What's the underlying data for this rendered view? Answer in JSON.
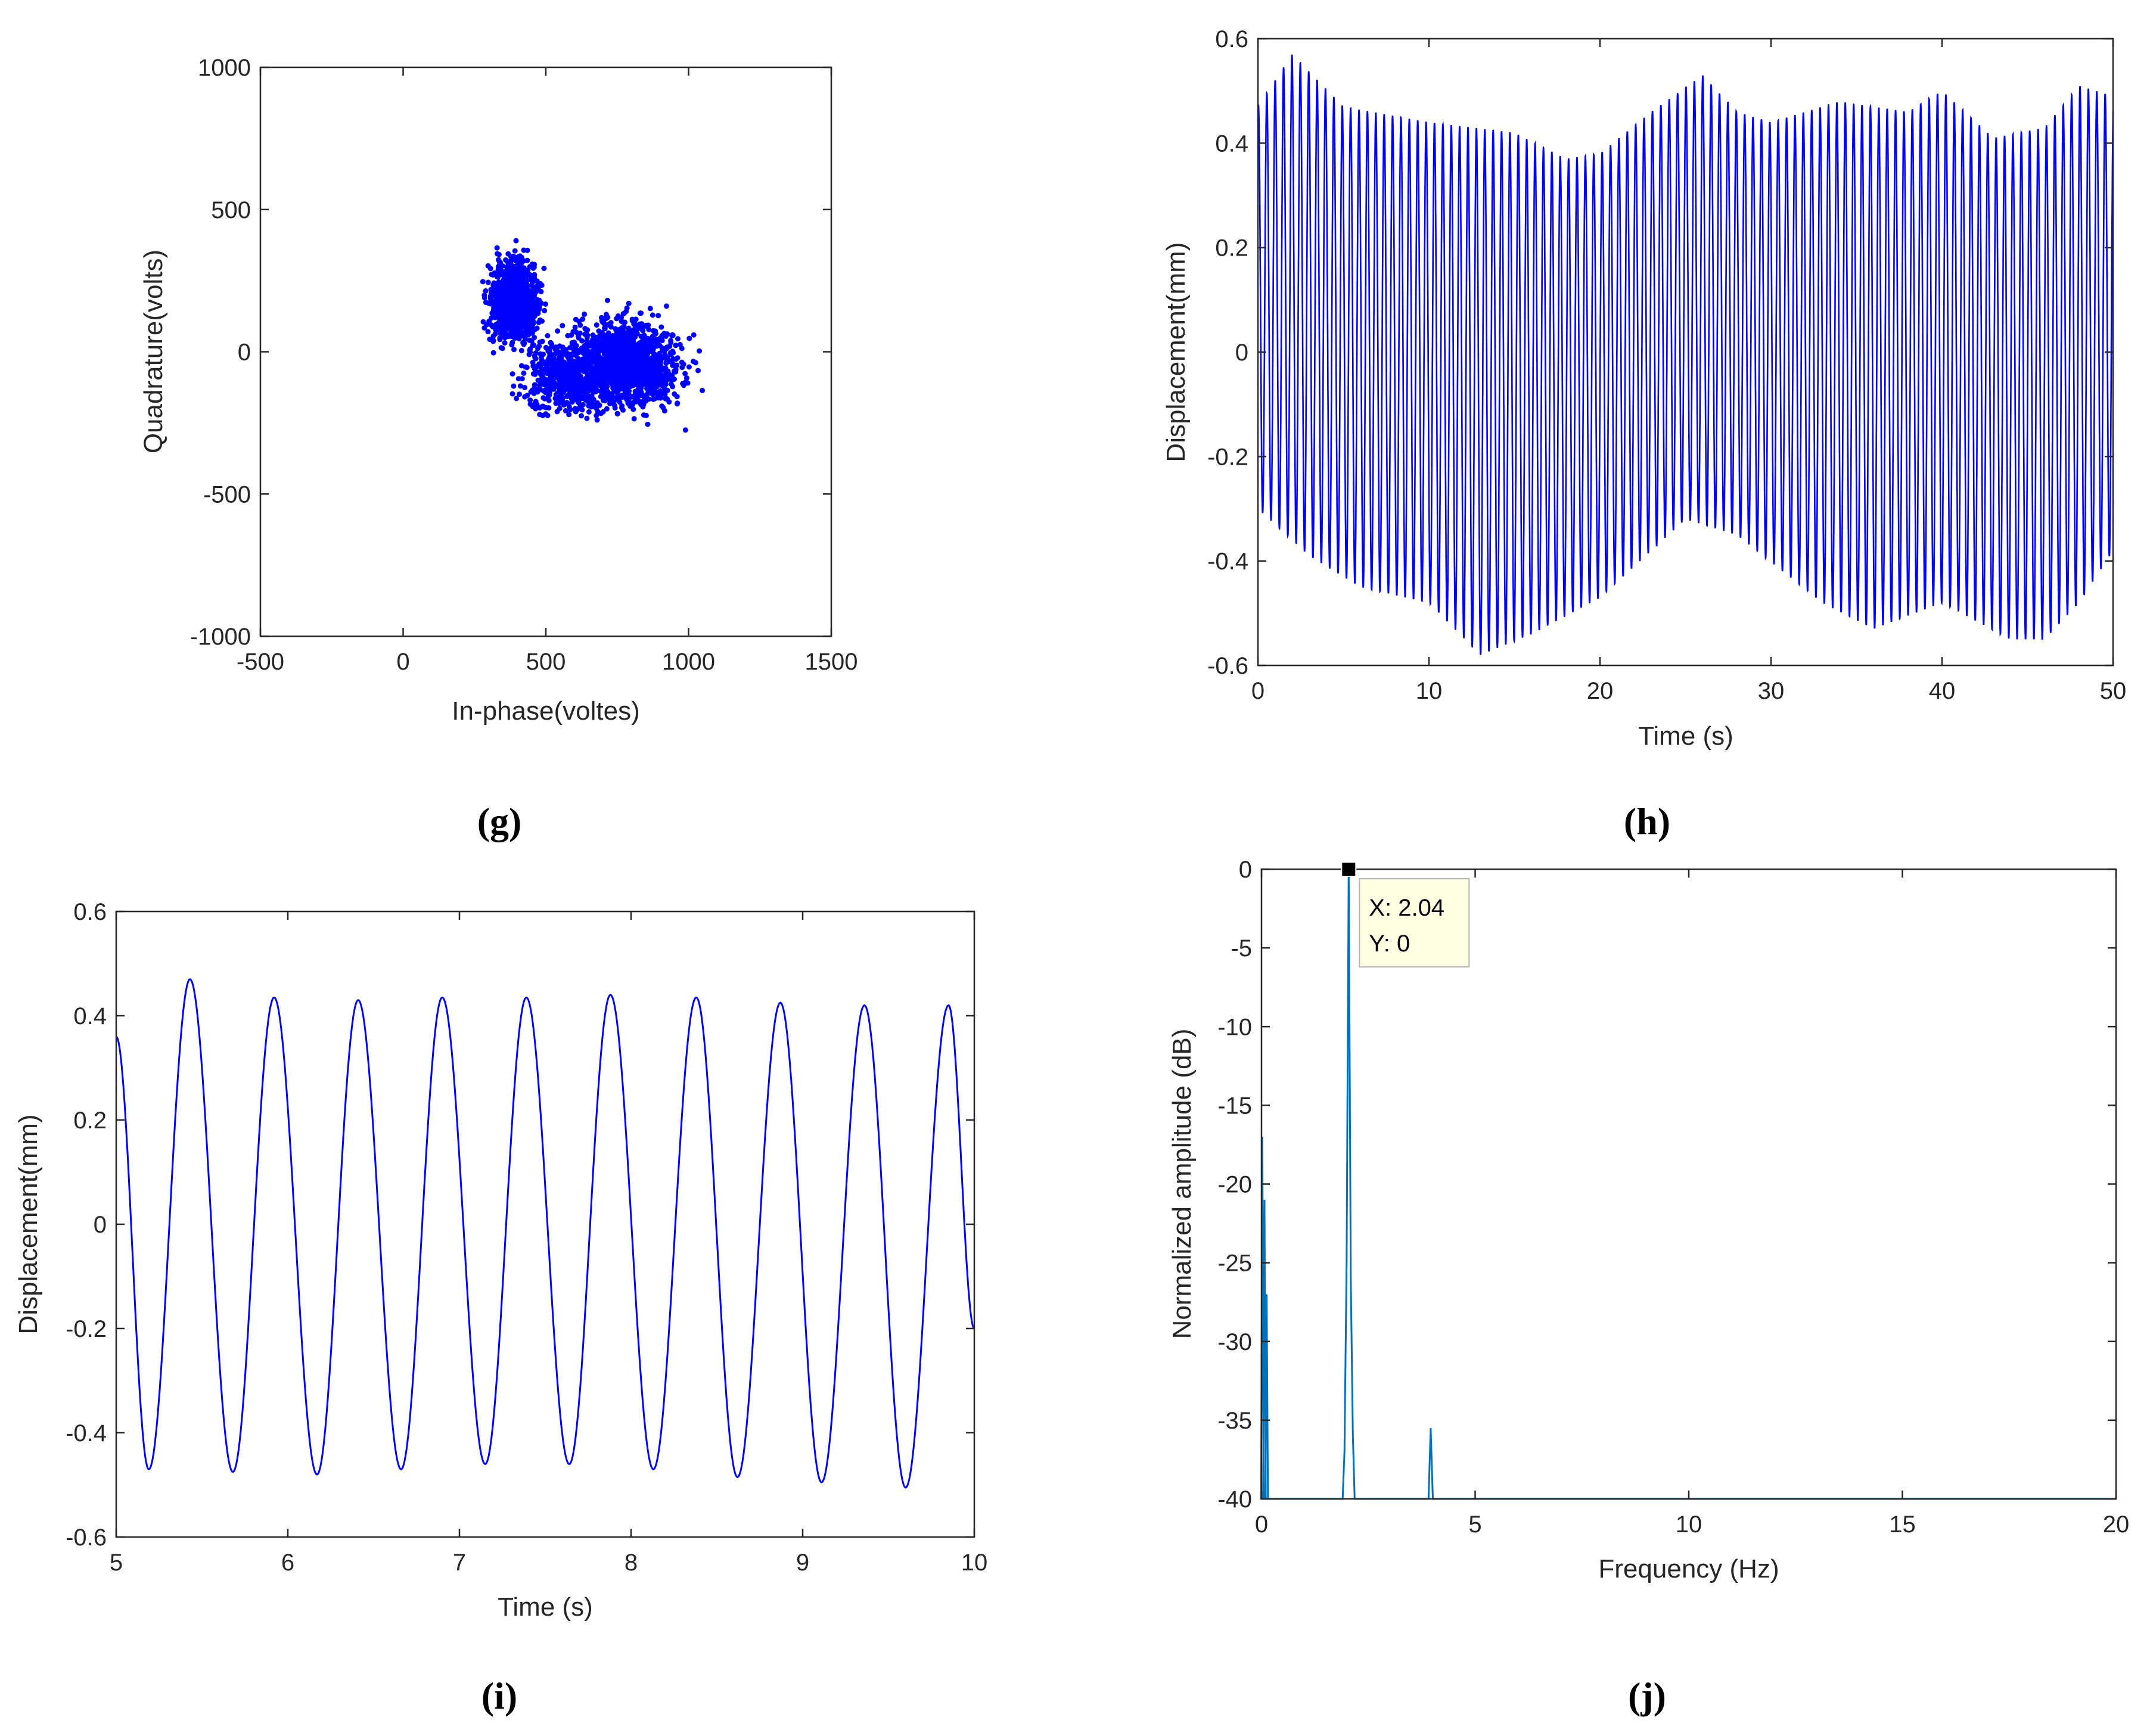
{
  "chart_data": [
    {
      "id": "g",
      "panel_label": "(g)",
      "type": "scatter",
      "xlabel": "In-phase(voltes)",
      "ylabel": "Quadrature(volts)",
      "xlim": [
        -500,
        1500
      ],
      "ylim": [
        -1000,
        1000
      ],
      "xticks": [
        "-500",
        "0",
        "500",
        "1000",
        "1500"
      ],
      "yticks": [
        "-1000",
        "-500",
        "0",
        "500",
        "1000"
      ],
      "color": "#0000ff",
      "clusters": [
        {
          "center": [
            390,
            180
          ],
          "spread": [
            70,
            120
          ],
          "n": 900
        },
        {
          "center": [
            780,
            -40
          ],
          "spread": [
            150,
            130
          ],
          "n": 1300
        },
        {
          "center": [
            560,
            -90
          ],
          "spread": [
            110,
            100
          ],
          "n": 500
        }
      ],
      "extent": {
        "x": [
          170,
          1110
        ],
        "y": [
          -330,
          470
        ]
      }
    },
    {
      "id": "h",
      "panel_label": "(h)",
      "type": "line",
      "xlabel": "Time (s)",
      "ylabel": "Displacement(mm)",
      "xlim": [
        0,
        50
      ],
      "ylim": [
        -0.6,
        0.6
      ],
      "xticks": [
        "0",
        "10",
        "20",
        "30",
        "40",
        "50"
      ],
      "yticks": [
        "-0.6",
        "-0.4",
        "-0.2",
        "0",
        "0.2",
        "0.4",
        "0.6"
      ],
      "color": "#0000ff",
      "frequency_hz": 2.04,
      "envelope_upper": {
        "t": [
          0,
          2,
          5,
          10,
          15,
          18,
          20,
          23,
          26,
          28,
          30,
          34,
          38,
          40,
          43,
          46,
          48,
          50
        ],
        "v": [
          0.47,
          0.57,
          0.47,
          0.44,
          0.42,
          0.37,
          0.38,
          0.46,
          0.53,
          0.46,
          0.44,
          0.48,
          0.46,
          0.5,
          0.41,
          0.43,
          0.51,
          0.49
        ]
      },
      "envelope_lower": {
        "t": [
          0,
          3,
          6,
          10,
          13,
          16,
          20,
          23,
          25,
          28,
          33,
          36,
          40,
          44,
          46,
          48,
          50
        ],
        "v": [
          -0.3,
          -0.39,
          -0.45,
          -0.48,
          -0.58,
          -0.54,
          -0.47,
          -0.38,
          -0.32,
          -0.35,
          -0.48,
          -0.53,
          -0.48,
          -0.55,
          -0.55,
          -0.48,
          -0.38
        ]
      }
    },
    {
      "id": "i",
      "panel_label": "(i)",
      "type": "line",
      "xlabel": "Time (s)",
      "ylabel": "Displacement(mm)",
      "xlim": [
        5,
        10
      ],
      "ylim": [
        -0.6,
        0.6
      ],
      "xticks": [
        "5",
        "6",
        "7",
        "8",
        "9",
        "10"
      ],
      "yticks": [
        "-0.6",
        "-0.4",
        "-0.2",
        "0",
        "0.2",
        "0.4",
        "0.6"
      ],
      "color": "#0000ff",
      "frequency_hz": 2.04,
      "peaks": [
        {
          "t": 5.43,
          "v": 0.47
        },
        {
          "t": 5.92,
          "v": 0.435
        },
        {
          "t": 6.41,
          "v": 0.43
        },
        {
          "t": 6.9,
          "v": 0.435
        },
        {
          "t": 7.39,
          "v": 0.435
        },
        {
          "t": 7.88,
          "v": 0.44
        },
        {
          "t": 8.38,
          "v": 0.435
        },
        {
          "t": 8.87,
          "v": 0.425
        },
        {
          "t": 9.36,
          "v": 0.42
        },
        {
          "t": 9.85,
          "v": 0.42
        }
      ],
      "troughs": [
        {
          "t": 5.19,
          "v": -0.47
        },
        {
          "t": 5.68,
          "v": -0.475
        },
        {
          "t": 6.17,
          "v": -0.48
        },
        {
          "t": 6.66,
          "v": -0.47
        },
        {
          "t": 7.15,
          "v": -0.46
        },
        {
          "t": 7.64,
          "v": -0.46
        },
        {
          "t": 8.13,
          "v": -0.47
        },
        {
          "t": 8.62,
          "v": -0.485
        },
        {
          "t": 9.11,
          "v": -0.495
        },
        {
          "t": 9.6,
          "v": -0.505
        }
      ],
      "start_value": 0.36,
      "end_value": -0.2
    },
    {
      "id": "j",
      "panel_label": "(j)",
      "type": "line",
      "xlabel": "Frequency (Hz)",
      "ylabel": "Normalized amplitude (dB)",
      "xlim": [
        0,
        20
      ],
      "ylim": [
        -40,
        0
      ],
      "xticks": [
        "0",
        "5",
        "10",
        "15",
        "20"
      ],
      "yticks": [
        "-40",
        "-35",
        "-30",
        "-25",
        "-20",
        "-15",
        "-10",
        "-5",
        "0"
      ],
      "color": "#0072bd",
      "peaks": [
        {
          "f": 0.02,
          "db": -17
        },
        {
          "f": 0.07,
          "db": -21
        },
        {
          "f": 0.12,
          "db": -27
        },
        {
          "f": 2.04,
          "db": 0
        },
        {
          "f": 3.96,
          "db": -35.5
        }
      ],
      "datatip": {
        "x_text": "X: 2.04",
        "y_text": "Y: 0",
        "x": 2.04,
        "y": 0
      }
    }
  ]
}
